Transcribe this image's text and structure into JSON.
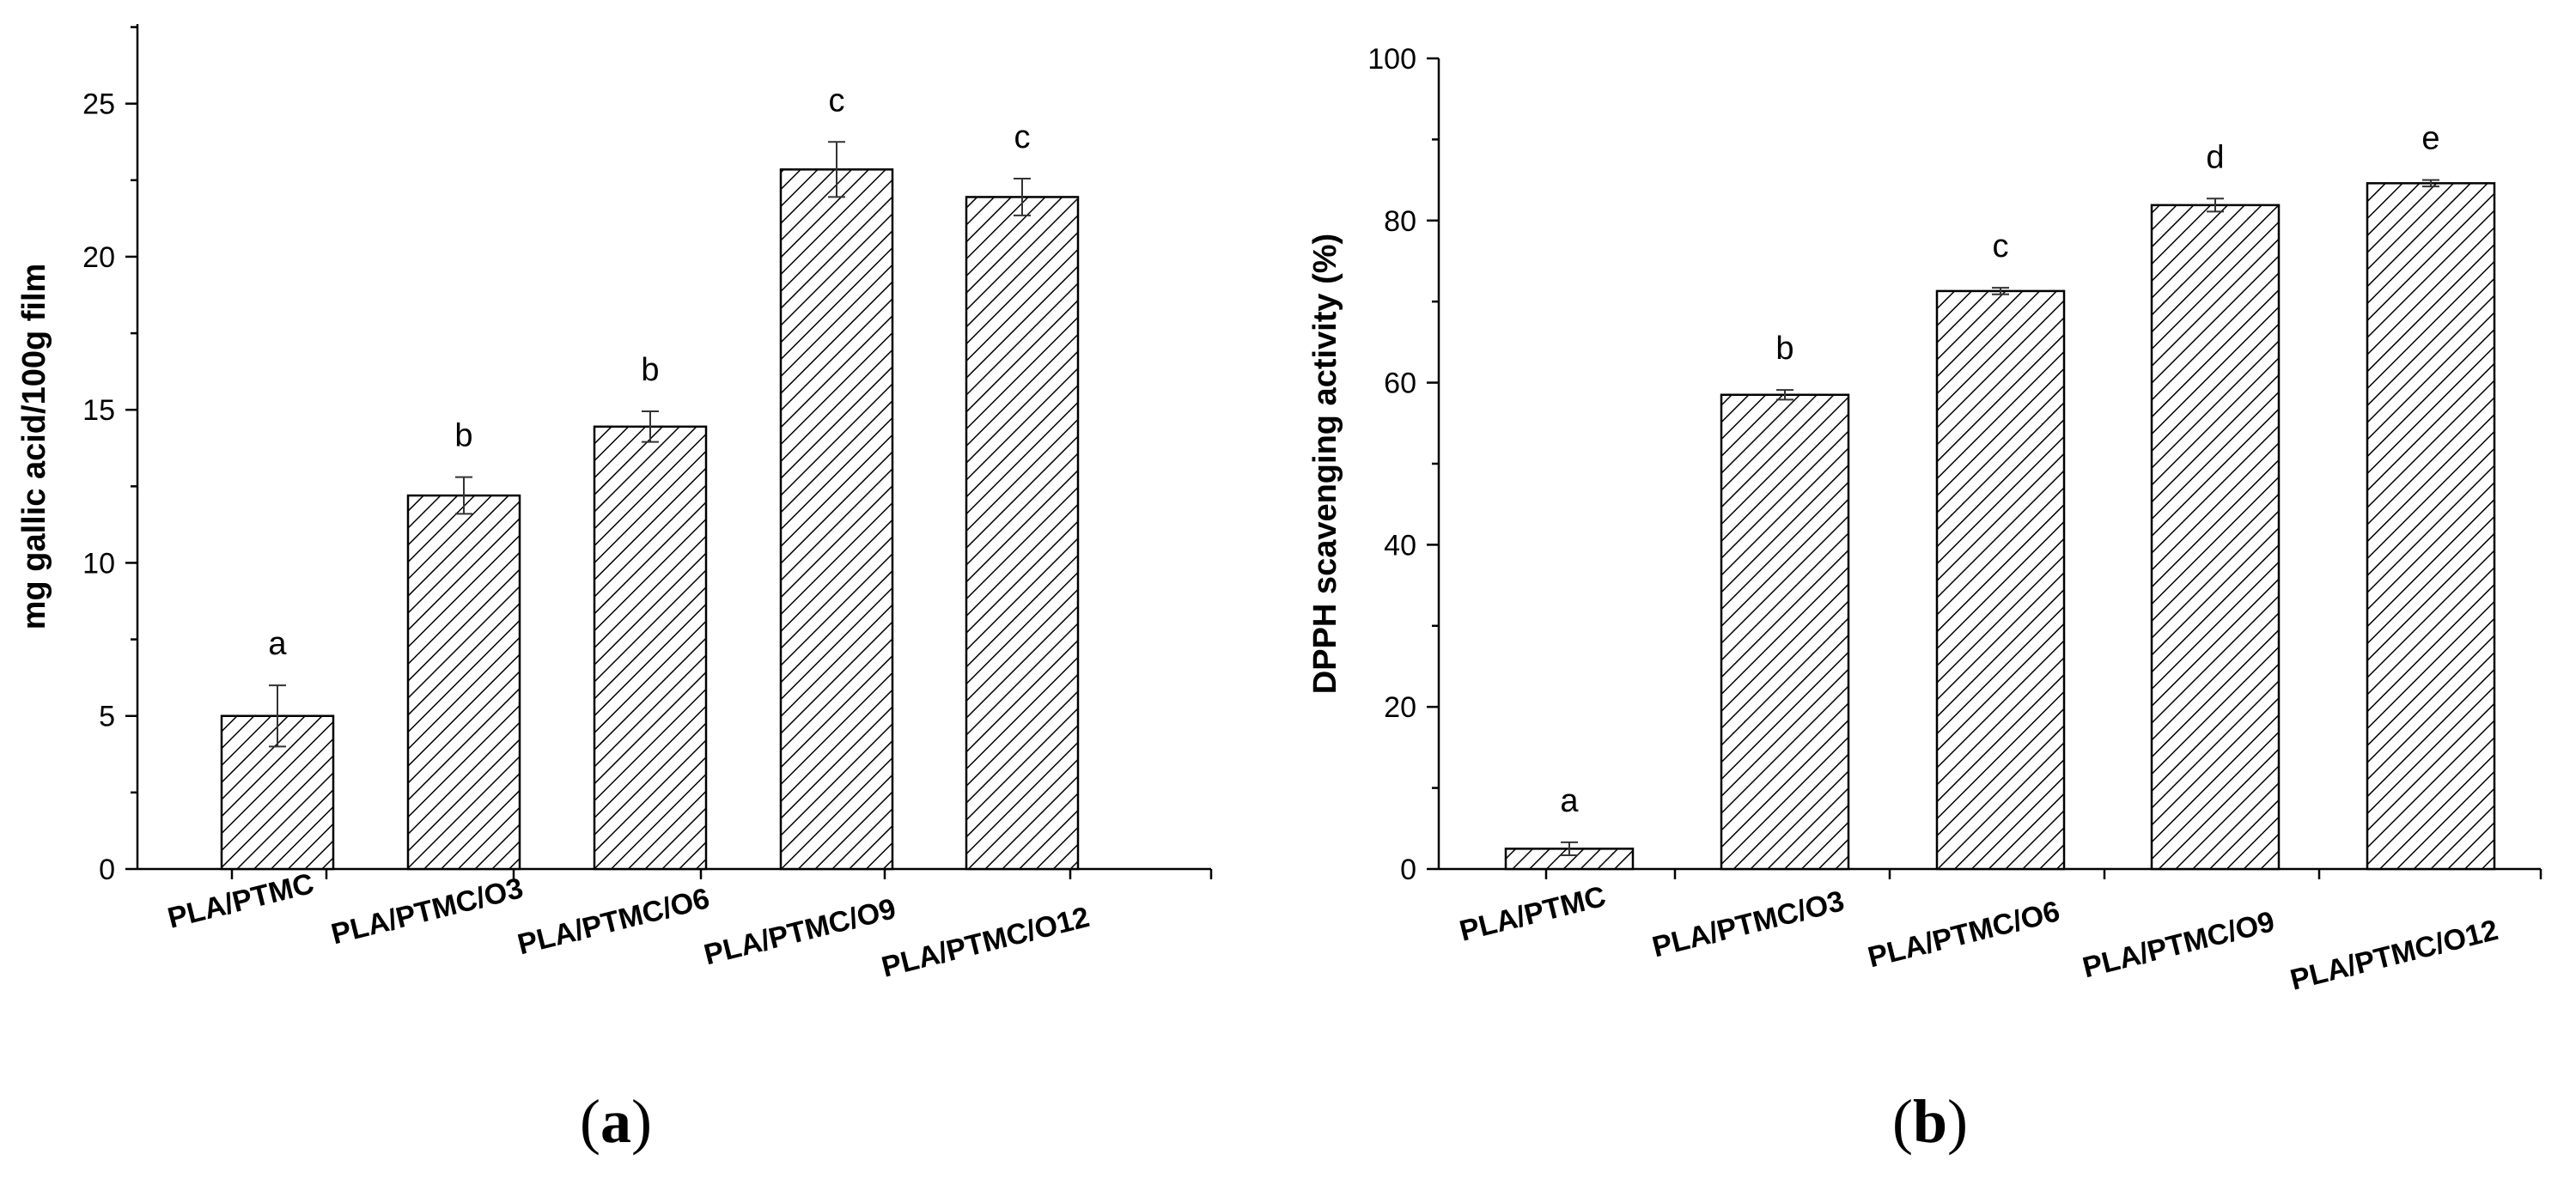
{
  "chart_data": [
    {
      "type": "bar",
      "panel_label": "a",
      "categories": [
        "PLA/PTMC",
        "PLA/PTMC/O3",
        "PLA/PTMC/O6",
        "PLA/PTMC/O9",
        "PLA/PTMC/O12"
      ],
      "values": [
        5.0,
        12.2,
        14.45,
        22.85,
        21.95
      ],
      "errors": [
        1.0,
        0.6,
        0.5,
        0.9,
        0.6
      ],
      "significance": [
        "a",
        "b",
        "b",
        "c",
        "c"
      ],
      "ylabel": "mg gallic acid/100g film",
      "xlabel": "",
      "ylim": [
        0,
        27.6
      ],
      "yticks": [
        0,
        5,
        10,
        15,
        20,
        25
      ],
      "hatch": "diagonal",
      "bar_fill": "#ffffff",
      "hatch_color": "#000000"
    },
    {
      "type": "bar",
      "panel_label": "b",
      "categories": [
        "PLA/PTMC",
        "PLA/PTMC/O3",
        "PLA/PTMC/O6",
        "PLA/PTMC/O9",
        "PLA/PTMC/O12"
      ],
      "values": [
        2.5,
        58.5,
        71.3,
        81.9,
        84.6
      ],
      "errors": [
        0.8,
        0.6,
        0.4,
        0.8,
        0.4
      ],
      "significance": [
        "a",
        "b",
        "c",
        "d",
        "e"
      ],
      "ylabel": "DPPH scavenging activity (%)",
      "xlabel": "",
      "ylim": [
        0,
        100
      ],
      "yticks": [
        0,
        20,
        40,
        60,
        80,
        100
      ],
      "hatch": "diagonal",
      "bar_fill": "#ffffff",
      "hatch_color": "#000000"
    }
  ]
}
